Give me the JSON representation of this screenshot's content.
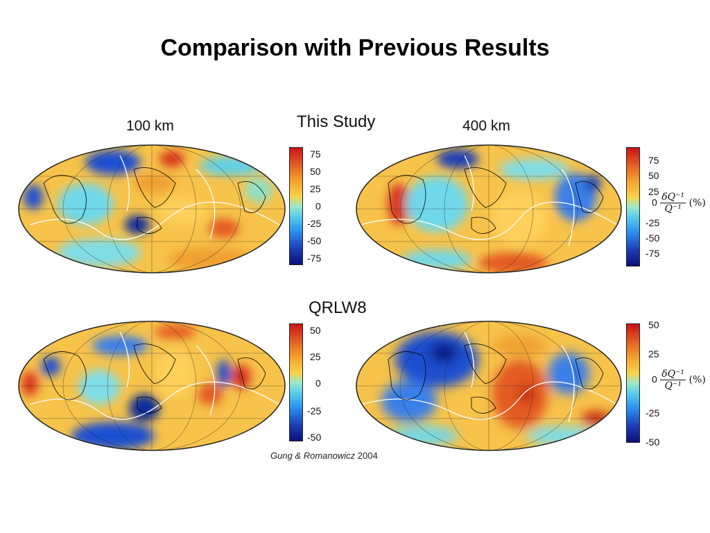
{
  "title": "Comparison with Previous Results",
  "rows": [
    {
      "label": "This Study",
      "panels": [
        {
          "depth": "100 km",
          "colorbar": {
            "ticks": [
              "75",
              "50",
              "25",
              "0",
              "-25",
              "-50",
              "-75"
            ]
          }
        },
        {
          "depth": "400 km",
          "colorbar": {
            "ticks": [
              "75",
              "50",
              "25",
              "0",
              "-25",
              "-50",
              "-75"
            ]
          }
        }
      ]
    },
    {
      "label": "QRLW8",
      "panels": [
        {
          "colorbar": {
            "ticks": [
              "50",
              "25",
              "0",
              "-25",
              "-50"
            ]
          }
        },
        {
          "colorbar": {
            "ticks": [
              "50",
              "25",
              "0",
              "-25",
              "-50"
            ]
          }
        }
      ]
    }
  ],
  "equation": {
    "prefix": "0",
    "numerator": "δQ⁻¹",
    "denominator": "Q⁻¹",
    "unit": "(%)"
  },
  "credit": {
    "authors": "Gung & Romanowicz",
    "year": "2004"
  },
  "colors": {
    "ocean_base": "#f5c242",
    "anomaly_blue": "#1f5fd6",
    "anomaly_deep_blue": "#0a1f8a",
    "anomaly_red": "#d93a1b",
    "anomaly_cyan": "#5fd0e8",
    "plate_boundary": "#ffffff",
    "coastline": "#000000"
  }
}
